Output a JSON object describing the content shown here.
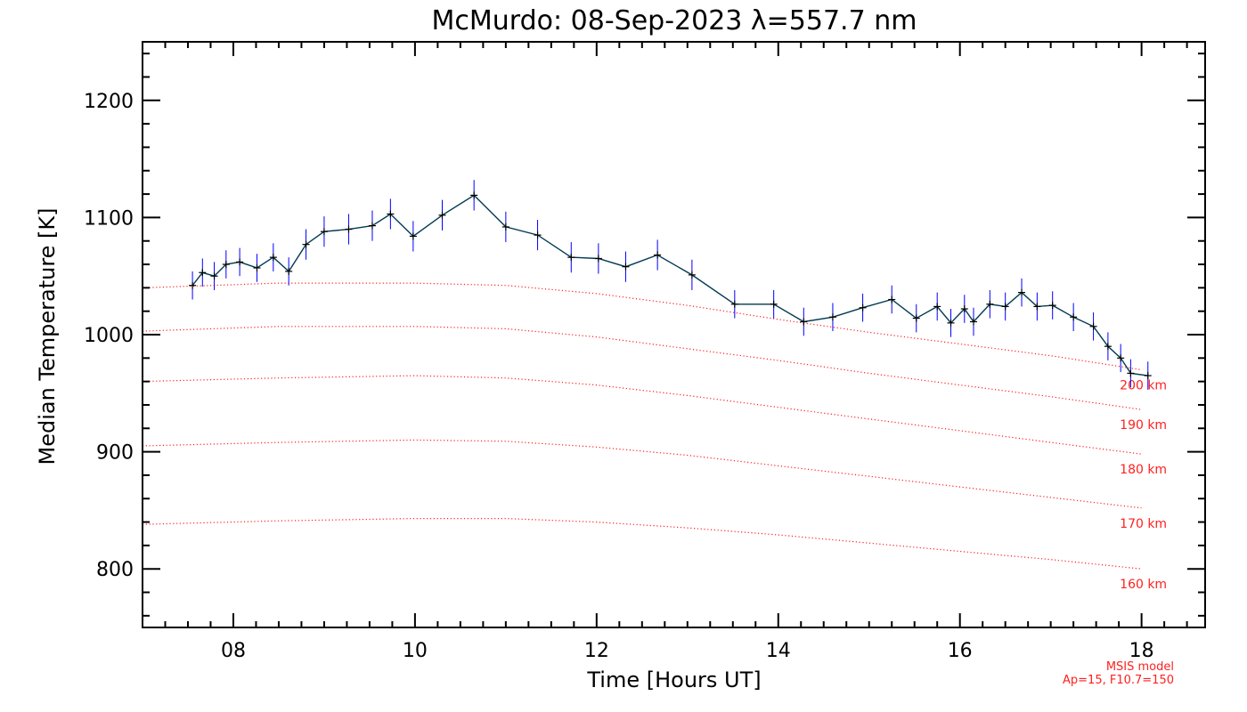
{
  "chart_data": {
    "type": "line",
    "title": "McMurdo: 08-Sep-2023 λ=557.7 nm",
    "xlabel": "Time [Hours UT]",
    "ylabel": "Median Temperature [K]",
    "xlim": [
      7.0,
      18.7
    ],
    "ylim": [
      750,
      1250
    ],
    "xticks": [
      8,
      10,
      12,
      14,
      16,
      18
    ],
    "xtick_labels": [
      "08",
      "10",
      "12",
      "14",
      "16",
      "18"
    ],
    "yticks": [
      800,
      900,
      1000,
      1100,
      1200
    ],
    "ytick_labels": [
      "800",
      "900",
      "1000",
      "1100",
      "1200"
    ],
    "colors": {
      "data_line": "#003a52",
      "marker": "#000000",
      "error_bar": "#0000ff",
      "model": "#ff2020",
      "axes": "#000000"
    },
    "series": [
      {
        "name": "Median Temperature",
        "x": [
          7.55,
          7.66,
          7.79,
          7.92,
          8.07,
          8.26,
          8.44,
          8.61,
          8.8,
          9.0,
          9.27,
          9.53,
          9.73,
          9.98,
          10.3,
          10.65,
          11.0,
          11.35,
          11.72,
          12.02,
          12.32,
          12.67,
          13.05,
          13.52,
          13.95,
          14.28,
          14.6,
          14.93,
          15.25,
          15.52,
          15.75,
          15.9,
          16.05,
          16.15,
          16.33,
          16.5,
          16.68,
          16.85,
          17.02,
          17.25,
          17.47,
          17.63,
          17.77,
          17.88,
          18.07
        ],
        "y": [
          1042,
          1053,
          1050,
          1060,
          1062,
          1057,
          1066,
          1054,
          1077,
          1088,
          1090,
          1093,
          1103,
          1084,
          1102,
          1119,
          1092,
          1085,
          1066,
          1065,
          1058,
          1068,
          1051,
          1026,
          1026,
          1011,
          1015,
          1023,
          1030,
          1014,
          1024,
          1010,
          1022,
          1011,
          1026,
          1024,
          1036,
          1024,
          1025,
          1015,
          1007,
          990,
          980,
          967,
          965
        ],
        "error": [
          12,
          12,
          12,
          12,
          12,
          12,
          12,
          12,
          13,
          13,
          13,
          13,
          13,
          13,
          13,
          13,
          13,
          13,
          13,
          13,
          13,
          13,
          13,
          12,
          12,
          12,
          12,
          12,
          12,
          12,
          12,
          12,
          12,
          12,
          12,
          12,
          12,
          12,
          12,
          12,
          12,
          12,
          12,
          12,
          12
        ]
      }
    ],
    "model_curves": [
      {
        "name": "200 km",
        "label": "200 km",
        "x": [
          7.0,
          8.5,
          10.0,
          11.0,
          12.0,
          13.0,
          14.0,
          15.0,
          16.0,
          17.0,
          18.0
        ],
        "y": [
          1040,
          1044,
          1044,
          1042,
          1035,
          1025,
          1013,
          1002,
          992,
          982,
          970
        ]
      },
      {
        "name": "190 km",
        "label": "190 km",
        "x": [
          7.0,
          8.5,
          10.0,
          11.0,
          12.0,
          13.0,
          14.0,
          15.0,
          16.0,
          17.0,
          18.0
        ],
        "y": [
          1003,
          1007,
          1007,
          1005,
          998,
          988,
          978,
          967,
          957,
          947,
          936
        ]
      },
      {
        "name": "180 km",
        "label": "180 km",
        "x": [
          7.0,
          8.5,
          10.0,
          11.0,
          12.0,
          13.0,
          14.0,
          15.0,
          16.0,
          17.0,
          18.0
        ],
        "y": [
          960,
          963,
          965,
          963,
          957,
          948,
          938,
          928,
          918,
          908,
          898
        ]
      },
      {
        "name": "170 km",
        "label": "170 km",
        "x": [
          7.0,
          8.5,
          10.0,
          11.0,
          12.0,
          13.0,
          14.0,
          15.0,
          16.0,
          17.0,
          18.0
        ],
        "y": [
          905,
          908,
          910,
          909,
          904,
          897,
          888,
          879,
          870,
          861,
          852
        ]
      },
      {
        "name": "160 km",
        "label": "160 km",
        "x": [
          7.0,
          8.5,
          10.0,
          11.0,
          12.0,
          13.0,
          14.0,
          15.0,
          16.0,
          17.0,
          18.0
        ],
        "y": [
          838,
          841,
          843,
          843,
          840,
          835,
          829,
          822,
          815,
          808,
          800
        ]
      }
    ],
    "annotations": [
      "MSIS model",
      "Ap=15, F10.7=150"
    ]
  }
}
